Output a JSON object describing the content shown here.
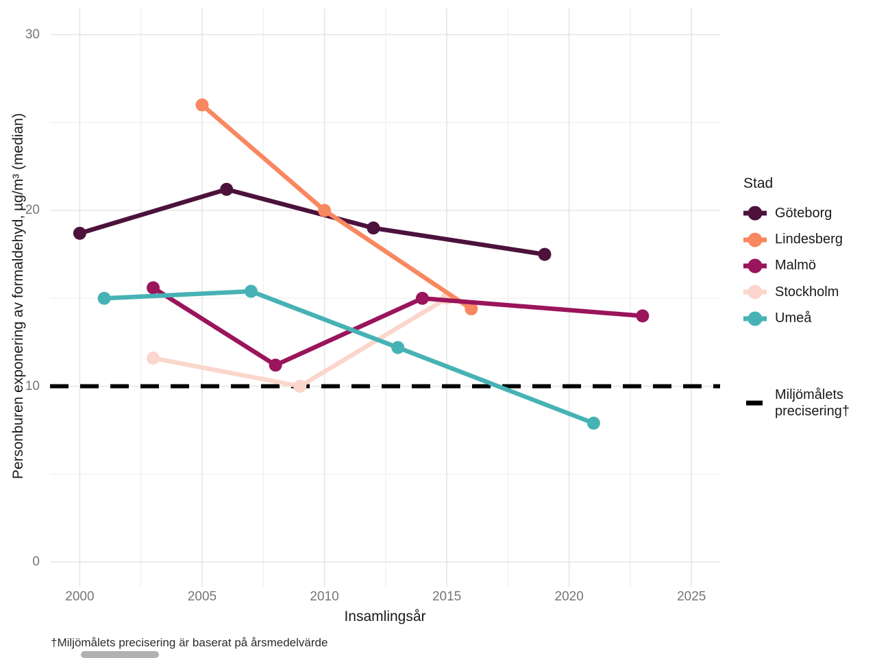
{
  "chart_data": {
    "type": "line",
    "title": "",
    "xlabel": "Insamlingsår",
    "ylabel": "Personburen exponering av formaldehyd, µg/m³ (median)",
    "x_ticks": [
      "2000",
      "2005",
      "2010",
      "2015",
      "2020",
      "2025"
    ],
    "y_ticks": [
      "0",
      "10",
      "20",
      "30"
    ],
    "xlim": [
      1998.8,
      2026.2
    ],
    "ylim": [
      -1.4,
      31.5
    ],
    "grid": "major and minor light grey gridlines, white background",
    "legend_position": "right",
    "legend_title": "Stad",
    "series": [
      {
        "name": "Göteborg",
        "color": "#4C123C",
        "points": [
          [
            2000,
            18.7
          ],
          [
            2006,
            21.2
          ],
          [
            2012,
            19.0
          ],
          [
            2019,
            17.5
          ]
        ]
      },
      {
        "name": "Lindesberg",
        "color": "#F9875F",
        "points": [
          [
            2005,
            26.0
          ],
          [
            2010,
            20.0
          ],
          [
            2016,
            14.4
          ]
        ]
      },
      {
        "name": "Malmö",
        "color": "#9A155B",
        "points": [
          [
            2003,
            15.6
          ],
          [
            2008,
            11.2
          ],
          [
            2014,
            15.0
          ],
          [
            2023,
            14.0
          ]
        ]
      },
      {
        "name": "Stockholm",
        "color": "#FBD6CC",
        "points": [
          [
            2003,
            11.6
          ],
          [
            2009,
            10.0
          ],
          [
            2015,
            15.0
          ]
        ]
      },
      {
        "name": "Umeå",
        "color": "#47B2B5",
        "points": [
          [
            2001,
            15.0
          ],
          [
            2007,
            15.4
          ],
          [
            2013,
            12.2
          ],
          [
            2021,
            7.9
          ]
        ]
      }
    ],
    "draw_order": [
      "Göteborg",
      "Stockholm",
      "Lindesberg",
      "Malmö",
      "Umeå"
    ],
    "reference_line": {
      "value": 10,
      "style": "dashed",
      "color": "#000000",
      "legend_label": "Miljömålets\nprecisering†"
    },
    "caption": "†Miljömålets precisering är baserat på årsmedelvärde"
  }
}
